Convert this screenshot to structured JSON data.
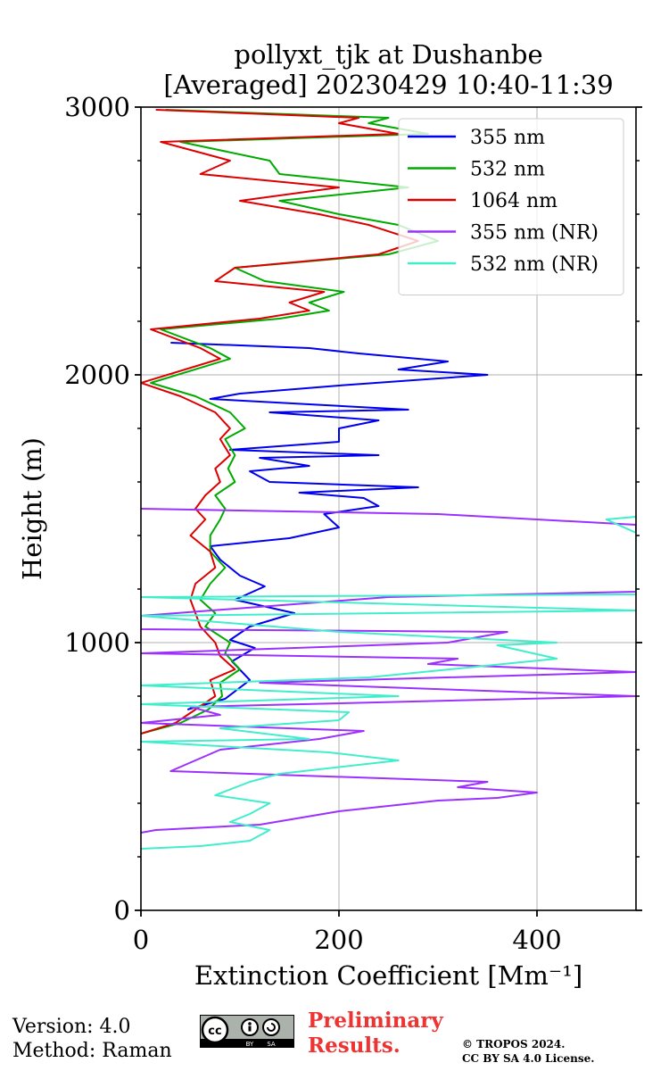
{
  "chart_data": {
    "type": "line",
    "title": "pollyxt_tjk at Dushanbe",
    "subtitle": "[Averaged] 20230429 10:40-11:39",
    "xlabel": "Extinction Coefficient [Mm⁻¹]",
    "ylabel": "Height (m)",
    "xlim": [
      0,
      500
    ],
    "ylim": [
      0,
      3000
    ],
    "xticks": [
      0,
      200,
      400
    ],
    "yticks": [
      0,
      1000,
      2000,
      3000
    ],
    "grid": true,
    "legend_position": "top-right",
    "series": [
      {
        "name": "355 nm",
        "color": "#0000ee",
        "points": [
          [
            47,
            750
          ],
          [
            85,
            790
          ],
          [
            110,
            860
          ],
          [
            92,
            930
          ],
          [
            115,
            980
          ],
          [
            90,
            1010
          ],
          [
            110,
            1060
          ],
          [
            155,
            1110
          ],
          [
            95,
            1160
          ],
          [
            125,
            1210
          ],
          [
            100,
            1250
          ],
          [
            80,
            1310
          ],
          [
            70,
            1360
          ],
          [
            150,
            1390
          ],
          [
            200,
            1430
          ],
          [
            185,
            1480
          ],
          [
            240,
            1510
          ],
          [
            225,
            1540
          ],
          [
            160,
            1560
          ],
          [
            280,
            1580
          ],
          [
            130,
            1600
          ],
          [
            110,
            1640
          ],
          [
            170,
            1660
          ],
          [
            120,
            1690
          ],
          [
            240,
            1700
          ],
          [
            90,
            1720
          ],
          [
            200,
            1750
          ],
          [
            200,
            1800
          ],
          [
            240,
            1830
          ],
          [
            130,
            1860
          ],
          [
            270,
            1870
          ],
          [
            170,
            1890
          ],
          [
            70,
            1910
          ],
          [
            100,
            1930
          ],
          [
            200,
            1960
          ],
          [
            350,
            2000
          ],
          [
            260,
            2020
          ],
          [
            310,
            2050
          ],
          [
            220,
            2080
          ],
          [
            170,
            2100
          ],
          [
            30,
            2120
          ]
        ]
      },
      {
        "name": "532 nm",
        "color": "#00aa00",
        "points": [
          [
            0,
            660
          ],
          [
            40,
            700
          ],
          [
            68,
            750
          ],
          [
            82,
            800
          ],
          [
            80,
            850
          ],
          [
            100,
            900
          ],
          [
            85,
            960
          ],
          [
            90,
            1000
          ],
          [
            65,
            1060
          ],
          [
            75,
            1110
          ],
          [
            60,
            1160
          ],
          [
            70,
            1220
          ],
          [
            85,
            1280
          ],
          [
            70,
            1340
          ],
          [
            70,
            1400
          ],
          [
            80,
            1460
          ],
          [
            85,
            1500
          ],
          [
            75,
            1550
          ],
          [
            95,
            1600
          ],
          [
            88,
            1650
          ],
          [
            95,
            1700
          ],
          [
            85,
            1760
          ],
          [
            105,
            1800
          ],
          [
            90,
            1860
          ],
          [
            55,
            1920
          ],
          [
            10,
            1970
          ],
          [
            90,
            2060
          ],
          [
            70,
            2100
          ],
          [
            20,
            2170
          ],
          [
            140,
            2210
          ],
          [
            190,
            2240
          ],
          [
            170,
            2270
          ],
          [
            205,
            2310
          ],
          [
            125,
            2350
          ],
          [
            95,
            2400
          ],
          [
            250,
            2450
          ],
          [
            300,
            2500
          ],
          [
            260,
            2560
          ],
          [
            200,
            2600
          ],
          [
            140,
            2650
          ],
          [
            270,
            2700
          ],
          [
            140,
            2750
          ],
          [
            130,
            2800
          ],
          [
            40,
            2870
          ],
          [
            290,
            2900
          ],
          [
            230,
            2940
          ],
          [
            250,
            2960
          ],
          [
            25,
            2990
          ]
        ]
      },
      {
        "name": "1064 nm",
        "color": "#dd0000",
        "points": [
          [
            0,
            660
          ],
          [
            35,
            700
          ],
          [
            55,
            750
          ],
          [
            75,
            800
          ],
          [
            70,
            860
          ],
          [
            95,
            900
          ],
          [
            80,
            950
          ],
          [
            75,
            1000
          ],
          [
            60,
            1060
          ],
          [
            55,
            1110
          ],
          [
            50,
            1160
          ],
          [
            55,
            1220
          ],
          [
            75,
            1280
          ],
          [
            70,
            1340
          ],
          [
            50,
            1400
          ],
          [
            65,
            1460
          ],
          [
            55,
            1500
          ],
          [
            65,
            1550
          ],
          [
            80,
            1600
          ],
          [
            75,
            1650
          ],
          [
            90,
            1700
          ],
          [
            80,
            1760
          ],
          [
            90,
            1800
          ],
          [
            75,
            1860
          ],
          [
            40,
            1920
          ],
          [
            0,
            1970
          ],
          [
            80,
            2060
          ],
          [
            60,
            2100
          ],
          [
            10,
            2170
          ],
          [
            120,
            2210
          ],
          [
            170,
            2240
          ],
          [
            150,
            2270
          ],
          [
            185,
            2310
          ],
          [
            75,
            2350
          ],
          [
            95,
            2400
          ],
          [
            240,
            2450
          ],
          [
            280,
            2500
          ],
          [
            230,
            2560
          ],
          [
            180,
            2600
          ],
          [
            100,
            2650
          ],
          [
            200,
            2700
          ],
          [
            60,
            2750
          ],
          [
            90,
            2800
          ],
          [
            20,
            2870
          ],
          [
            260,
            2900
          ],
          [
            200,
            2940
          ],
          [
            220,
            2960
          ],
          [
            15,
            2990
          ]
        ]
      },
      {
        "name": "355 nm (NR)",
        "color": "#9b30ff",
        "points": [
          [
            0,
            290
          ],
          [
            15,
            300
          ],
          [
            120,
            320
          ],
          [
            200,
            370
          ],
          [
            300,
            410
          ],
          [
            360,
            420
          ],
          [
            400,
            440
          ],
          [
            320,
            460
          ],
          [
            350,
            480
          ],
          [
            30,
            520
          ],
          [
            80,
            600
          ],
          [
            180,
            640
          ],
          [
            225,
            670
          ],
          [
            0,
            700
          ],
          [
            80,
            730
          ],
          [
            50,
            760
          ],
          [
            500,
            800
          ],
          [
            120,
            850
          ],
          [
            500,
            890
          ],
          [
            290,
            920
          ],
          [
            320,
            940
          ],
          [
            0,
            960
          ],
          [
            310,
            1000
          ],
          [
            370,
            1040
          ],
          [
            0,
            1050
          ],
          [
            0,
            1100
          ],
          [
            250,
            1170
          ],
          [
            500,
            1190
          ],
          [
            500,
            1300
          ],
          [
            500,
            1340
          ],
          [
            500,
            1370
          ],
          [
            500,
            1420
          ],
          [
            500,
            1440
          ],
          [
            300,
            1480
          ],
          [
            0,
            1500
          ]
        ]
      },
      {
        "name": "532 nm (NR)",
        "color": "#40eecc",
        "points": [
          [
            0,
            230
          ],
          [
            60,
            240
          ],
          [
            110,
            260
          ],
          [
            130,
            300
          ],
          [
            90,
            330
          ],
          [
            110,
            360
          ],
          [
            130,
            400
          ],
          [
            75,
            430
          ],
          [
            110,
            480
          ],
          [
            140,
            510
          ],
          [
            260,
            560
          ],
          [
            190,
            590
          ],
          [
            0,
            630
          ],
          [
            170,
            640
          ],
          [
            80,
            680
          ],
          [
            200,
            710
          ],
          [
            210,
            740
          ],
          [
            0,
            770
          ],
          [
            260,
            800
          ],
          [
            0,
            840
          ],
          [
            230,
            870
          ],
          [
            420,
            940
          ],
          [
            360,
            990
          ],
          [
            420,
            1000
          ],
          [
            200,
            1040
          ],
          [
            0,
            1100
          ],
          [
            500,
            1120
          ],
          [
            0,
            1170
          ],
          [
            500,
            1180
          ],
          [
            500,
            1300
          ],
          [
            500,
            1330
          ],
          [
            500,
            1380
          ],
          [
            500,
            1410
          ],
          [
            470,
            1460
          ],
          [
            500,
            1470
          ]
        ]
      }
    ]
  },
  "footer": {
    "version": "Version: 4.0",
    "method": "Method: Raman",
    "preliminary_line1": "Preliminary",
    "preliminary_line2": "Results.",
    "copyright_line1": "© TROPOS 2024.",
    "copyright_line2": "CC BY SA 4.0 License.",
    "license_badge": "CC BY SA"
  }
}
